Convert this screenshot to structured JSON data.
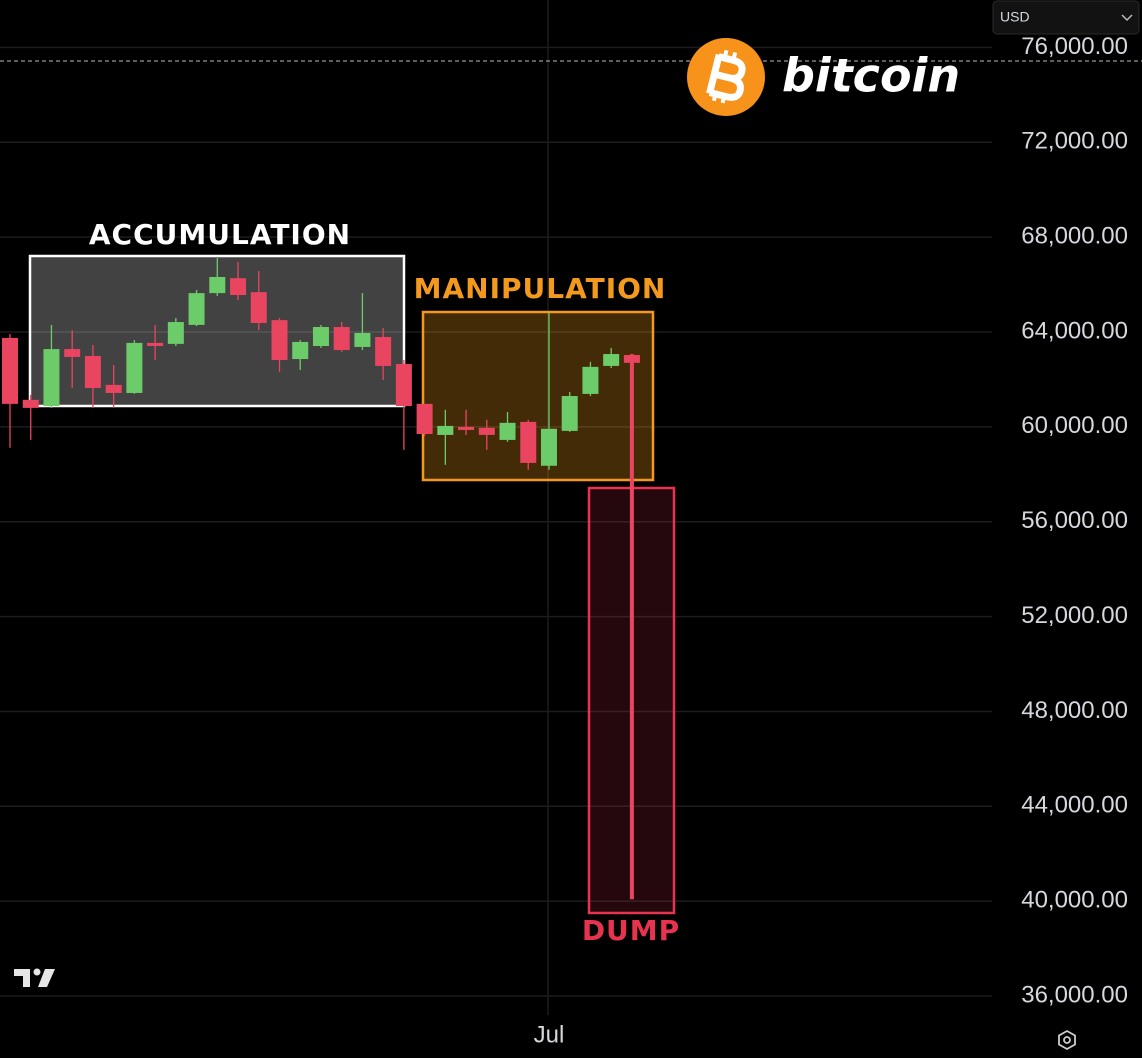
{
  "chart_data": {
    "type": "candlestick",
    "categories": [
      null,
      null,
      null,
      null,
      null,
      null,
      null,
      null,
      null,
      null,
      null,
      null,
      null,
      null,
      null,
      null,
      null,
      null,
      null,
      null,
      null,
      null,
      null,
      null,
      null,
      null,
      "Jul",
      null,
      null,
      null,
      null
    ],
    "open": [
      63750,
      61140,
      60880,
      63280,
      62990,
      61770,
      61430,
      63540,
      63500,
      64300,
      65640,
      66270,
      65680,
      64500,
      62860,
      63410,
      64210,
      63370,
      63790,
      62650,
      60970,
      59660,
      60000,
      59960,
      59450,
      60210,
      58360,
      59830,
      61390,
      62570,
      63030
    ],
    "high": [
      63920,
      61350,
      64300,
      64080,
      63450,
      62610,
      63660,
      64300,
      64590,
      65770,
      67120,
      66950,
      66570,
      64590,
      63660,
      64300,
      64420,
      65640,
      64170,
      62820,
      60970,
      60720,
      60720,
      60300,
      60630,
      60300,
      64800,
      61470,
      62740,
      63330,
      63070
    ],
    "low": [
      59120,
      59450,
      60800,
      61640,
      60800,
      60800,
      61390,
      62820,
      63410,
      64250,
      65520,
      65350,
      64080,
      62320,
      62400,
      63330,
      63160,
      63240,
      61980,
      59030,
      59620,
      58400,
      59660,
      59030,
      59370,
      58190,
      58190,
      59790,
      61300,
      62480,
      40080
    ],
    "close": [
      60970,
      60800,
      63280,
      62950,
      61640,
      61430,
      63540,
      63410,
      64420,
      65640,
      66320,
      65560,
      64380,
      62820,
      63580,
      64210,
      63240,
      63960,
      62570,
      60880,
      59700,
      60040,
      59870,
      59660,
      60170,
      58480,
      59920,
      61300,
      62530,
      63070,
      62700
    ],
    "up_color": "#6dcc6a",
    "down_color": "#ea4560",
    "ylim": [
      35200,
      78000
    ],
    "yticks": [
      {
        "value": 36000,
        "label": "36,000.00"
      },
      {
        "value": 40000,
        "label": "40,000.00"
      },
      {
        "value": 44000,
        "label": "44,000.00"
      },
      {
        "value": 48000,
        "label": "48,000.00"
      },
      {
        "value": 52000,
        "label": "52,000.00"
      },
      {
        "value": 56000,
        "label": "56,000.00"
      },
      {
        "value": 60000,
        "label": "60,000.00"
      },
      {
        "value": 64000,
        "label": "64,000.00"
      },
      {
        "value": 68000,
        "label": "68,000.00"
      },
      {
        "value": 72000,
        "label": "72,000.00"
      },
      {
        "value": 76000,
        "label": "76,000.00"
      }
    ],
    "grid": true,
    "annotations": [
      {
        "text": "ACCUMULATION",
        "color": "#ffffff"
      },
      {
        "text": "MANIPULATION",
        "color": "#f39a1e"
      },
      {
        "text": "DUMP",
        "color": "#e8334f"
      }
    ]
  },
  "logo": {
    "text": "bitcoin"
  },
  "currency_selector": "USD"
}
